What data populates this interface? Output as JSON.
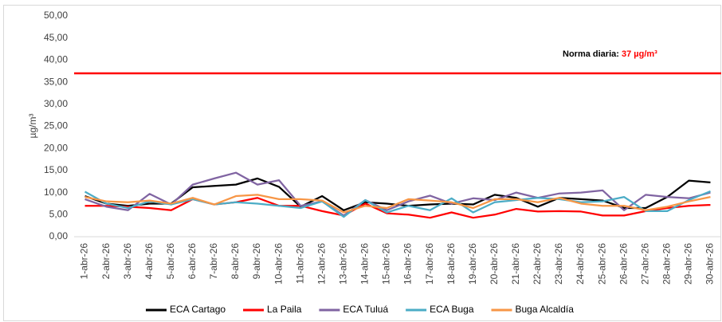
{
  "chart_data": {
    "type": "line",
    "y_label": "µg/m³",
    "annotation_label": "Norma diaria:",
    "annotation_value": "37 µg/m³",
    "reference_line": {
      "value": 37,
      "color": "#ff0000"
    },
    "categories": [
      "1-abr-26",
      "2-abr-26",
      "3-abr-26",
      "4-abr-26",
      "5-abr-26",
      "6-abr-26",
      "7-abr-26",
      "8-abr-26",
      "9-abr-26",
      "10-abr-26",
      "11-abr-26",
      "12-abr-26",
      "13-abr-26",
      "14-abr-26",
      "15-abr-26",
      "16-abr-26",
      "17-abr-26",
      "18-abr-26",
      "19-abr-26",
      "20-abr-26",
      "21-abr-26",
      "22-abr-26",
      "23-abr-26",
      "24-abr-26",
      "25-abr-26",
      "26-abr-26",
      "27-abr-26",
      "28-abr-26",
      "29-abr-26",
      "30-abr-26"
    ],
    "series": [
      {
        "name": "ECA Cartago",
        "color": "#000000",
        "values": [
          9.2,
          7.5,
          7.0,
          7.5,
          7.5,
          11.2,
          11.5,
          11.8,
          13.2,
          11.3,
          6.8,
          9.2,
          6.0,
          7.8,
          7.5,
          7.0,
          7.3,
          7.5,
          7.3,
          9.5,
          8.8,
          6.8,
          8.8,
          8.5,
          8.2,
          6.5,
          6.5,
          9.0,
          12.7,
          12.3
        ]
      },
      {
        "name": "La Paila",
        "color": "#ff0000",
        "values": [
          7.0,
          7.0,
          6.8,
          6.5,
          6.0,
          8.5,
          7.3,
          7.8,
          8.8,
          7.0,
          7.0,
          5.8,
          4.8,
          7.5,
          5.3,
          5.0,
          4.3,
          5.5,
          4.3,
          5.0,
          6.3,
          5.7,
          5.8,
          5.7,
          4.8,
          4.8,
          5.8,
          6.5,
          7.0,
          7.2
        ]
      },
      {
        "name": "ECA Tuluá",
        "color": "#8064a2",
        "values": [
          8.5,
          6.8,
          6.0,
          9.7,
          7.3,
          11.8,
          13.2,
          14.5,
          11.8,
          12.8,
          7.0,
          8.0,
          4.8,
          8.3,
          6.0,
          8.0,
          9.3,
          7.5,
          8.7,
          8.3,
          10.0,
          8.8,
          9.8,
          10.0,
          10.5,
          6.0,
          9.5,
          9.0,
          8.7,
          10.0
        ]
      },
      {
        "name": "ECA Buga",
        "color": "#4bacc6",
        "values": [
          10.2,
          7.5,
          6.5,
          8.0,
          7.3,
          8.5,
          7.3,
          7.8,
          7.5,
          7.0,
          6.5,
          8.0,
          4.5,
          8.3,
          5.5,
          7.0,
          6.0,
          8.7,
          5.5,
          7.8,
          8.3,
          8.8,
          8.5,
          7.8,
          8.0,
          9.0,
          5.8,
          5.8,
          8.3,
          10.3
        ]
      },
      {
        "name": "Buga Alcaldía",
        "color": "#f79646",
        "values": [
          9.0,
          8.0,
          7.8,
          8.2,
          7.5,
          8.8,
          7.3,
          9.2,
          9.5,
          8.5,
          8.5,
          8.2,
          5.5,
          7.0,
          6.5,
          8.5,
          8.2,
          7.8,
          6.5,
          8.5,
          8.5,
          7.8,
          8.8,
          7.5,
          7.0,
          7.0,
          6.0,
          6.8,
          8.0,
          9.0
        ]
      }
    ],
    "ylim": [
      0,
      50
    ],
    "yticks": [
      {
        "value": 0,
        "label": "0,00"
      },
      {
        "value": 5,
        "label": "5,00"
      },
      {
        "value": 10,
        "label": "10,00"
      },
      {
        "value": 15,
        "label": "15,00"
      },
      {
        "value": 20,
        "label": "20,00"
      },
      {
        "value": 25,
        "label": "25,00"
      },
      {
        "value": 30,
        "label": "30,00"
      },
      {
        "value": 35,
        "label": "35,00"
      },
      {
        "value": 40,
        "label": "40,00"
      },
      {
        "value": 45,
        "label": "45,00"
      },
      {
        "value": 50,
        "label": "50,00"
      }
    ],
    "grid": false,
    "legend": "bottom"
  }
}
